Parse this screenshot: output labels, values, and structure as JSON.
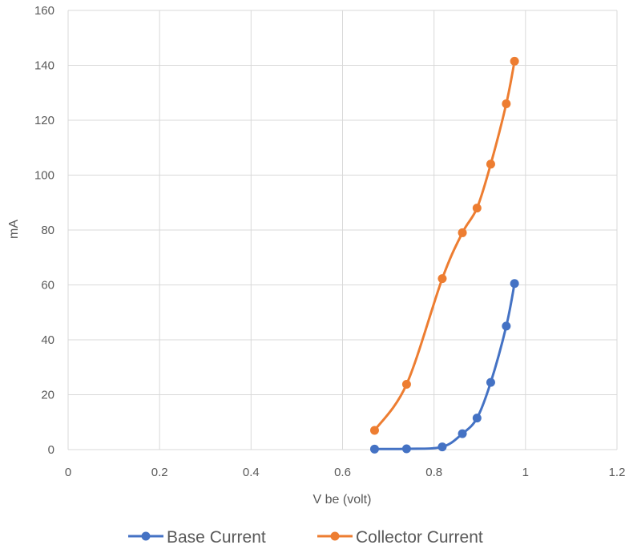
{
  "chart_data": {
    "type": "line",
    "xlabel": "V be (volt)",
    "ylabel": "mA",
    "xlim": [
      0,
      1.2
    ],
    "ylim": [
      0,
      160
    ],
    "xticks": [
      "0",
      "0.2",
      "0.4",
      "0.6",
      "0.8",
      "1",
      "1.2"
    ],
    "yticks": [
      "0",
      "20",
      "40",
      "60",
      "80",
      "100",
      "120",
      "140",
      "160"
    ],
    "grid": true,
    "legend_position": "bottom",
    "series": [
      {
        "name": "Base Current",
        "color": "#4472C4",
        "x": [
          0.67,
          0.74,
          0.818,
          0.862,
          0.894,
          0.924,
          0.958,
          0.976
        ],
        "y": [
          0.2,
          0.3,
          1.0,
          5.8,
          11.5,
          24.5,
          45,
          60.5
        ]
      },
      {
        "name": "Collector Current",
        "color": "#ED7D31",
        "x": [
          0.67,
          0.74,
          0.818,
          0.862,
          0.894,
          0.924,
          0.958,
          0.976
        ],
        "y": [
          7,
          23.8,
          62.3,
          79,
          88,
          104,
          126,
          141.5
        ]
      }
    ]
  }
}
